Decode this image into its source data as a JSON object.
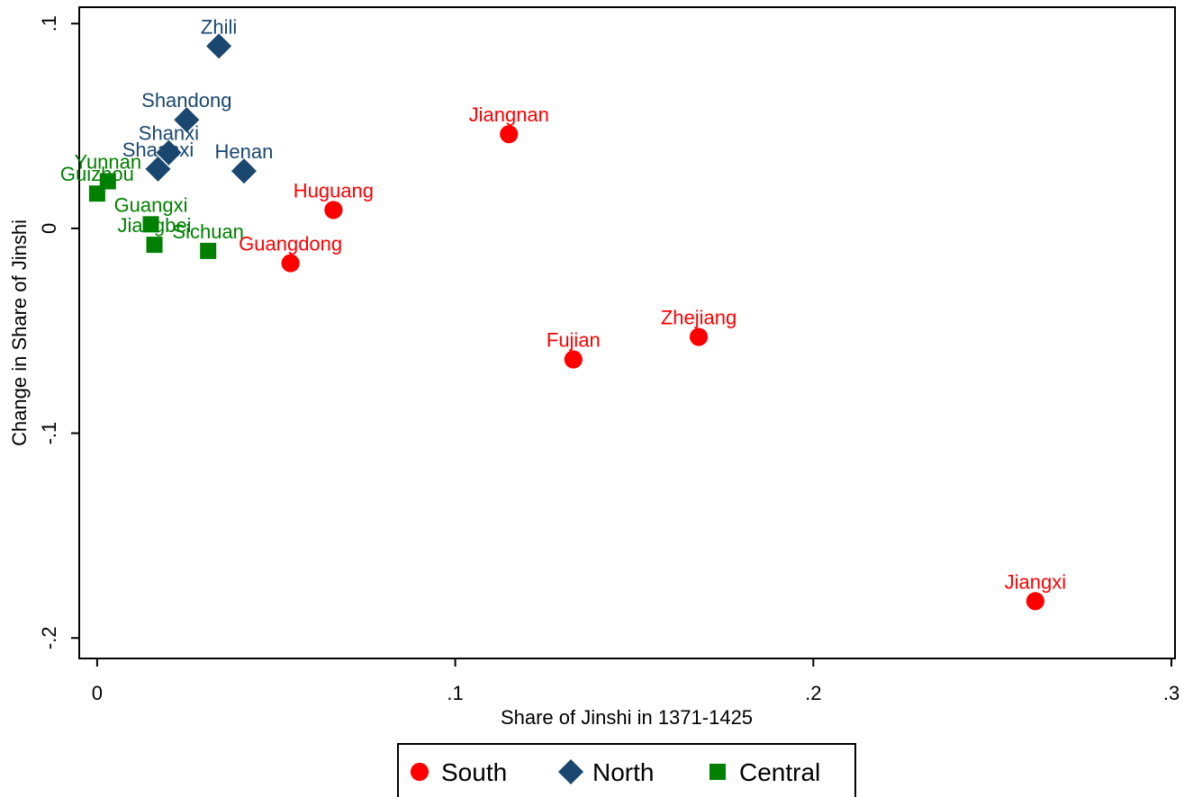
{
  "chart_data": {
    "type": "scatter",
    "title": "",
    "xlabel": "Share of Jinshi in 1371-1425",
    "ylabel": "Change in Share of Jinshi",
    "xlim": [
      -0.005,
      0.301
    ],
    "ylim": [
      -0.21,
      0.108
    ],
    "x_ticks": [
      0,
      0.1,
      0.2,
      0.3
    ],
    "x_tick_labels": [
      "0",
      ".1",
      ".2",
      ".3"
    ],
    "y_ticks": [
      -0.2,
      -0.1,
      0,
      0.1
    ],
    "y_tick_labels": [
      "-.2",
      "-.1",
      "0",
      ".1"
    ],
    "grid": false,
    "legend_position": "bottom",
    "series": [
      {
        "name": "South",
        "marker": "circle",
        "color": "#ff0000",
        "points": [
          {
            "label": "Jiangnan",
            "x": 0.115,
            "y": 0.046
          },
          {
            "label": "Huguang",
            "x": 0.066,
            "y": 0.009
          },
          {
            "label": "Guangdong",
            "x": 0.054,
            "y": -0.017
          },
          {
            "label": "Fujian",
            "x": 0.133,
            "y": -0.064
          },
          {
            "label": "Zhejiang",
            "x": 0.168,
            "y": -0.053
          },
          {
            "label": "Jiangxi",
            "x": 0.262,
            "y": -0.182
          }
        ]
      },
      {
        "name": "North",
        "marker": "diamond",
        "color": "#1a476f",
        "points": [
          {
            "label": "Zhili",
            "x": 0.034,
            "y": 0.089
          },
          {
            "label": "Shandong",
            "x": 0.025,
            "y": 0.053
          },
          {
            "label": "Shanxi",
            "x": 0.02,
            "y": 0.037
          },
          {
            "label": "Shaanxi",
            "x": 0.017,
            "y": 0.029
          },
          {
            "label": "Henan",
            "x": 0.041,
            "y": 0.028
          }
        ]
      },
      {
        "name": "Central",
        "marker": "square",
        "color": "#008000",
        "points": [
          {
            "label": "Yunnan",
            "x": 0.003,
            "y": 0.023
          },
          {
            "label": "Guizhou",
            "x": 0.0,
            "y": 0.017
          },
          {
            "label": "Guangxi",
            "x": 0.015,
            "y": 0.002
          },
          {
            "label": "Jiangbei",
            "x": 0.016,
            "y": -0.008
          },
          {
            "label": "Sichuan",
            "x": 0.031,
            "y": -0.011
          }
        ]
      }
    ]
  }
}
